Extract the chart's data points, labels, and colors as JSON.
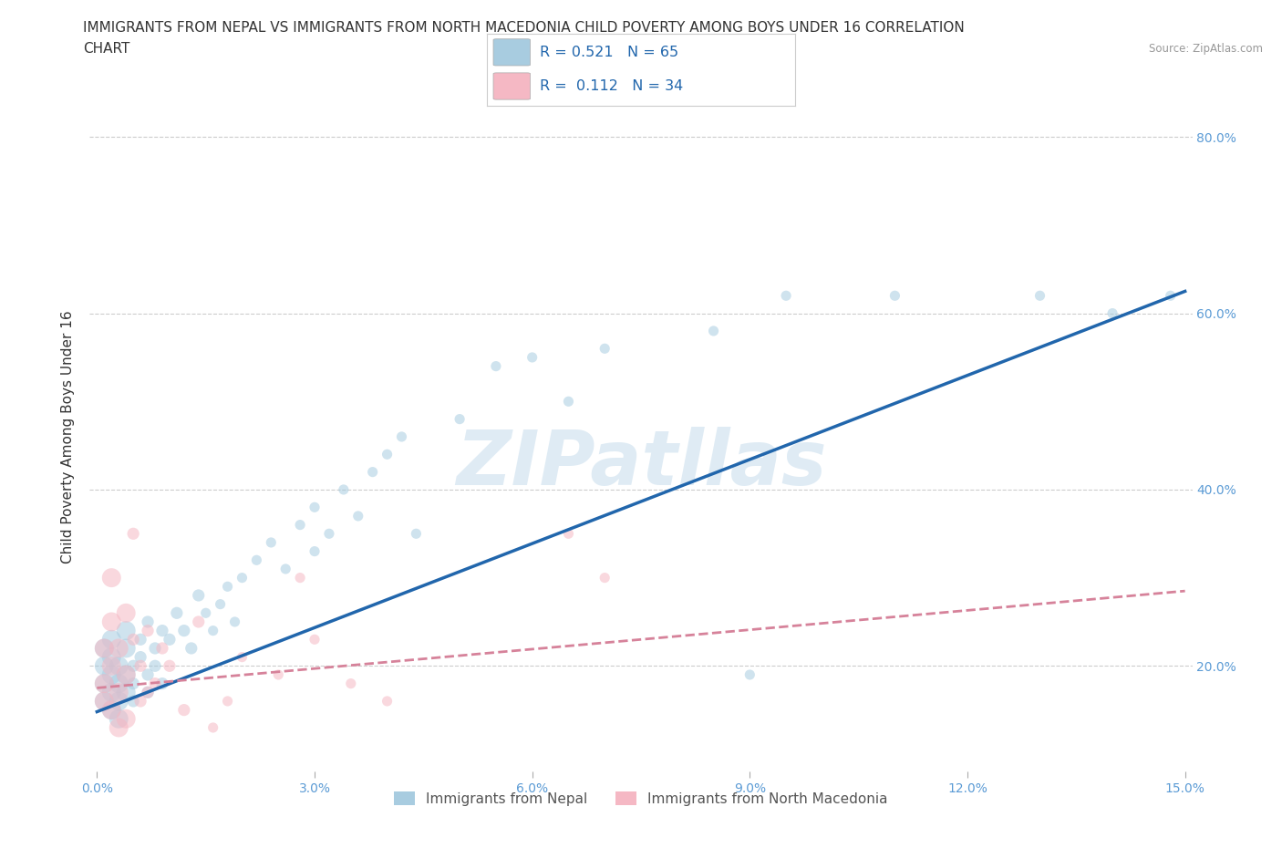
{
  "title_line1": "IMMIGRANTS FROM NEPAL VS IMMIGRANTS FROM NORTH MACEDONIA CHILD POVERTY AMONG BOYS UNDER 16 CORRELATION",
  "title_line2": "CHART",
  "source": "Source: ZipAtlas.com",
  "ylabel": "Child Poverty Among Boys Under 16",
  "xlabel_nepal": "Immigrants from Nepal",
  "xlabel_north_mac": "Immigrants from North Macedonia",
  "r_nepal": 0.521,
  "n_nepal": 65,
  "r_north_mac": 0.112,
  "n_north_mac": 34,
  "color_nepal": "#a8cce0",
  "color_north_mac": "#f5b8c4",
  "color_nepal_line": "#2166ac",
  "color_north_mac_line": "#d6829a",
  "xlim": [
    -0.001,
    0.151
  ],
  "ylim": [
    0.08,
    0.84
  ],
  "xticks": [
    0.0,
    0.03,
    0.06,
    0.09,
    0.12,
    0.15
  ],
  "xtick_labels": [
    "0.0%",
    "3.0%",
    "6.0%",
    "9.0%",
    "12.0%",
    "15.0%"
  ],
  "yticks": [
    0.2,
    0.4,
    0.6,
    0.8
  ],
  "ytick_labels_right": [
    "20.0%",
    "40.0%",
    "60.0%",
    "80.0%"
  ],
  "watermark": "ZIPatllas",
  "nepal_line_x0": 0.0,
  "nepal_line_y0": 0.148,
  "nepal_line_x1": 0.15,
  "nepal_line_y1": 0.625,
  "north_mac_line_x0": 0.0,
  "north_mac_line_y0": 0.175,
  "north_mac_line_x1": 0.15,
  "north_mac_line_y1": 0.285,
  "nepal_scatter_x": [
    0.001,
    0.001,
    0.001,
    0.001,
    0.002,
    0.002,
    0.002,
    0.002,
    0.002,
    0.003,
    0.003,
    0.003,
    0.003,
    0.004,
    0.004,
    0.004,
    0.004,
    0.005,
    0.005,
    0.005,
    0.006,
    0.006,
    0.007,
    0.007,
    0.007,
    0.008,
    0.008,
    0.009,
    0.009,
    0.01,
    0.011,
    0.012,
    0.013,
    0.014,
    0.015,
    0.016,
    0.017,
    0.018,
    0.019,
    0.02,
    0.022,
    0.024,
    0.026,
    0.028,
    0.03,
    0.03,
    0.032,
    0.034,
    0.036,
    0.038,
    0.04,
    0.042,
    0.044,
    0.05,
    0.055,
    0.06,
    0.065,
    0.07,
    0.085,
    0.09,
    0.095,
    0.11,
    0.13,
    0.14,
    0.148
  ],
  "nepal_scatter_y": [
    0.18,
    0.2,
    0.22,
    0.16,
    0.17,
    0.19,
    0.21,
    0.15,
    0.23,
    0.18,
    0.2,
    0.16,
    0.14,
    0.19,
    0.17,
    0.22,
    0.24,
    0.2,
    0.18,
    0.16,
    0.21,
    0.23,
    0.25,
    0.19,
    0.17,
    0.22,
    0.2,
    0.18,
    0.24,
    0.23,
    0.26,
    0.24,
    0.22,
    0.28,
    0.26,
    0.24,
    0.27,
    0.29,
    0.25,
    0.3,
    0.32,
    0.34,
    0.31,
    0.36,
    0.33,
    0.38,
    0.35,
    0.4,
    0.37,
    0.42,
    0.44,
    0.46,
    0.35,
    0.48,
    0.54,
    0.55,
    0.5,
    0.56,
    0.58,
    0.19,
    0.62,
    0.62,
    0.62,
    0.6,
    0.62
  ],
  "north_mac_scatter_x": [
    0.001,
    0.001,
    0.001,
    0.002,
    0.002,
    0.002,
    0.002,
    0.003,
    0.003,
    0.003,
    0.004,
    0.004,
    0.004,
    0.005,
    0.005,
    0.006,
    0.006,
    0.007,
    0.007,
    0.008,
    0.009,
    0.01,
    0.012,
    0.014,
    0.016,
    0.018,
    0.02,
    0.025,
    0.028,
    0.03,
    0.035,
    0.04,
    0.065,
    0.07
  ],
  "north_mac_scatter_y": [
    0.22,
    0.18,
    0.16,
    0.3,
    0.25,
    0.2,
    0.15,
    0.22,
    0.17,
    0.13,
    0.26,
    0.19,
    0.14,
    0.23,
    0.35,
    0.2,
    0.16,
    0.17,
    0.24,
    0.18,
    0.22,
    0.2,
    0.15,
    0.25,
    0.13,
    0.16,
    0.21,
    0.19,
    0.3,
    0.23,
    0.18,
    0.16,
    0.35,
    0.3
  ],
  "title_fontsize": 11,
  "axis_label_fontsize": 11,
  "tick_fontsize": 10,
  "legend_fontsize": 12,
  "watermark_fontsize": 60,
  "scatter_size_small": 60,
  "scatter_size_large": 250,
  "scatter_alpha": 0.55,
  "background_color": "#ffffff",
  "grid_color": "#cccccc",
  "tick_color": "#5b9bd5"
}
